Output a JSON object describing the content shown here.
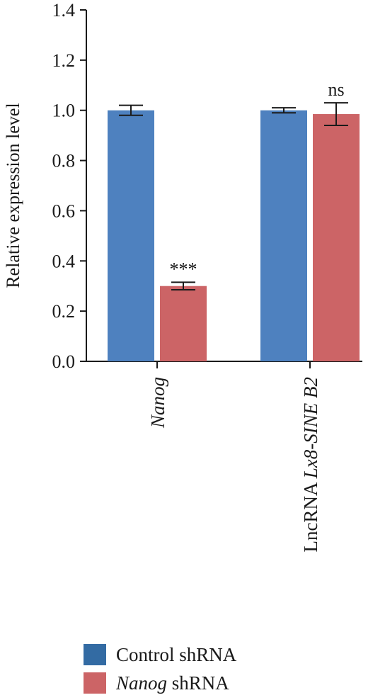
{
  "chart_data": {
    "type": "bar",
    "ylabel": "Relative expression level",
    "ylim": [
      0,
      1.4
    ],
    "yticks": [
      "0.0",
      "0.2",
      "0.4",
      "0.6",
      "0.8",
      "1.0",
      "1.2",
      "1.4"
    ],
    "categories": [
      {
        "label": "Nanog",
        "italic_part": "Nanog",
        "plain_part": ""
      },
      {
        "label": "LncRNA Lx8-SINE B2",
        "plain_part": "LncRNA ",
        "italic_part": "Lx8-SINE B2"
      }
    ],
    "series": [
      {
        "name": "Control shRNA",
        "color": "#4e81bf",
        "values": [
          1.0,
          1.0
        ],
        "errors": [
          0.02,
          0.01
        ]
      },
      {
        "name": "Nanog shRNA",
        "color": "#cc6466",
        "values": [
          0.3,
          0.985
        ],
        "errors": [
          0.015,
          0.045
        ]
      }
    ],
    "annotations": [
      "***",
      "ns"
    ]
  },
  "legend": {
    "items": [
      {
        "italic": "",
        "plain": "Control shRNA",
        "color": "#336ba3"
      },
      {
        "italic": "Nanog",
        "plain": " shRNA",
        "color": "#cc6466"
      }
    ]
  }
}
